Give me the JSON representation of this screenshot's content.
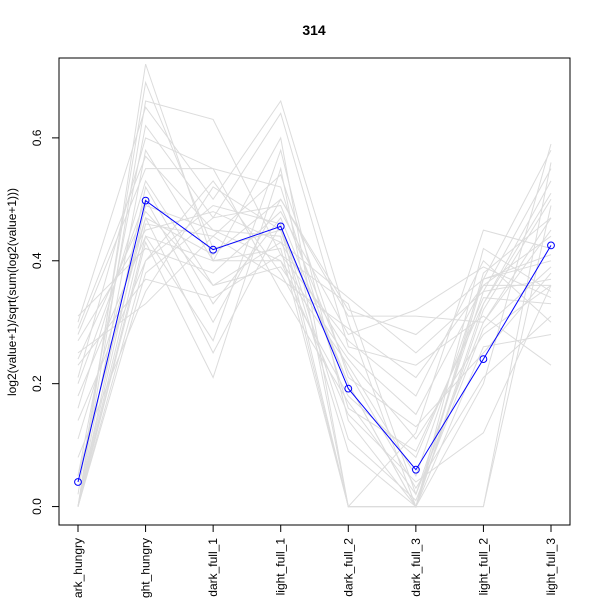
{
  "chart_data": {
    "type": "line",
    "title": "314",
    "xlabel": "",
    "ylabel": "log2(value+1)/sqrt(sum(log2(value+1)))",
    "categories": [
      "dark_hungry",
      "light_hungry",
      "dark_full_1",
      "light_full_1",
      "dark_full_2",
      "dark_full_3",
      "light_full_2",
      "light_full_3"
    ],
    "category_labels_visible": [
      "ark_hungry",
      "ght_hungry",
      "dark_full_1",
      "light_full_1",
      "dark_full_2",
      "dark_full_3",
      "light_full_2",
      "light_full_3"
    ],
    "ylim": [
      -0.03,
      0.73
    ],
    "yticks": [
      0.0,
      0.2,
      0.4,
      0.6
    ],
    "ytick_labels": [
      "0.0",
      "0.2",
      "0.4",
      "0.6"
    ],
    "highlight_color": "#0000ff",
    "background_color": "#dcdcdc",
    "highlight": {
      "values": [
        0.04,
        0.498,
        0.418,
        0.456,
        0.192,
        0.06,
        0.24,
        0.425
      ]
    },
    "background_series": [
      [
        0.0,
        0.72,
        0.4,
        0.42,
        0.0,
        0.0,
        0.37,
        0.58
      ],
      [
        0.02,
        0.69,
        0.42,
        0.45,
        0.2,
        0.0,
        0.2,
        0.59
      ],
      [
        0.0,
        0.66,
        0.63,
        0.41,
        0.33,
        0.02,
        0.35,
        0.55
      ],
      [
        0.3,
        0.65,
        0.5,
        0.66,
        0.3,
        0.0,
        0.32,
        0.5
      ],
      [
        0.05,
        0.62,
        0.47,
        0.64,
        0.26,
        0.23,
        0.31,
        0.23
      ],
      [
        0.0,
        0.58,
        0.4,
        0.6,
        0.0,
        0.0,
        0.0,
        0.56
      ],
      [
        0.28,
        0.55,
        0.55,
        0.52,
        0.16,
        0.09,
        0.33,
        0.53
      ],
      [
        0.0,
        0.52,
        0.33,
        0.47,
        0.2,
        0.0,
        0.38,
        0.47
      ],
      [
        0.2,
        0.5,
        0.3,
        0.5,
        0.31,
        0.31,
        0.3,
        0.45
      ],
      [
        0.0,
        0.49,
        0.45,
        0.44,
        0.0,
        0.12,
        0.45,
        0.42
      ],
      [
        0.24,
        0.48,
        0.36,
        0.39,
        0.23,
        0.05,
        0.37,
        0.4
      ],
      [
        0.11,
        0.47,
        0.25,
        0.46,
        0.11,
        0.01,
        0.29,
        0.39
      ],
      [
        0.0,
        0.46,
        0.44,
        0.54,
        0.21,
        0.13,
        0.25,
        0.38
      ],
      [
        0.27,
        0.45,
        0.48,
        0.43,
        0.34,
        0.25,
        0.35,
        0.37
      ],
      [
        0.18,
        0.44,
        0.4,
        0.4,
        0.15,
        0.04,
        0.12,
        0.36
      ],
      [
        0.0,
        0.43,
        0.21,
        0.55,
        0.0,
        0.0,
        0.42,
        0.35
      ],
      [
        0.31,
        0.42,
        0.38,
        0.48,
        0.28,
        0.32,
        0.39,
        0.34
      ],
      [
        0.14,
        0.4,
        0.53,
        0.38,
        0.18,
        0.08,
        0.34,
        0.33
      ],
      [
        0.0,
        0.38,
        0.47,
        0.49,
        0.22,
        0.03,
        0.21,
        0.31
      ],
      [
        0.23,
        0.37,
        0.34,
        0.41,
        0.27,
        0.18,
        0.4,
        0.3
      ],
      [
        0.08,
        0.35,
        0.52,
        0.45,
        0.09,
        0.0,
        0.26,
        0.28
      ],
      [
        0.25,
        0.33,
        0.44,
        0.37,
        0.29,
        0.21,
        0.36,
        0.44
      ],
      [
        0.0,
        0.44,
        0.27,
        0.58,
        0.14,
        0.0,
        0.0,
        0.49
      ],
      [
        0.16,
        0.53,
        0.36,
        0.43,
        0.25,
        0.15,
        0.36,
        0.36
      ],
      [
        0.0,
        0.4,
        0.49,
        0.46,
        0.0,
        0.0,
        0.33,
        0.51
      ],
      [
        0.29,
        0.57,
        0.45,
        0.4,
        0.24,
        0.11,
        0.28,
        0.36
      ],
      [
        0.05,
        0.47,
        0.41,
        0.5,
        0.32,
        0.28,
        0.37,
        0.41
      ],
      [
        0.21,
        0.6,
        0.55,
        0.35,
        0.17,
        0.02,
        0.3,
        0.47
      ]
    ]
  }
}
